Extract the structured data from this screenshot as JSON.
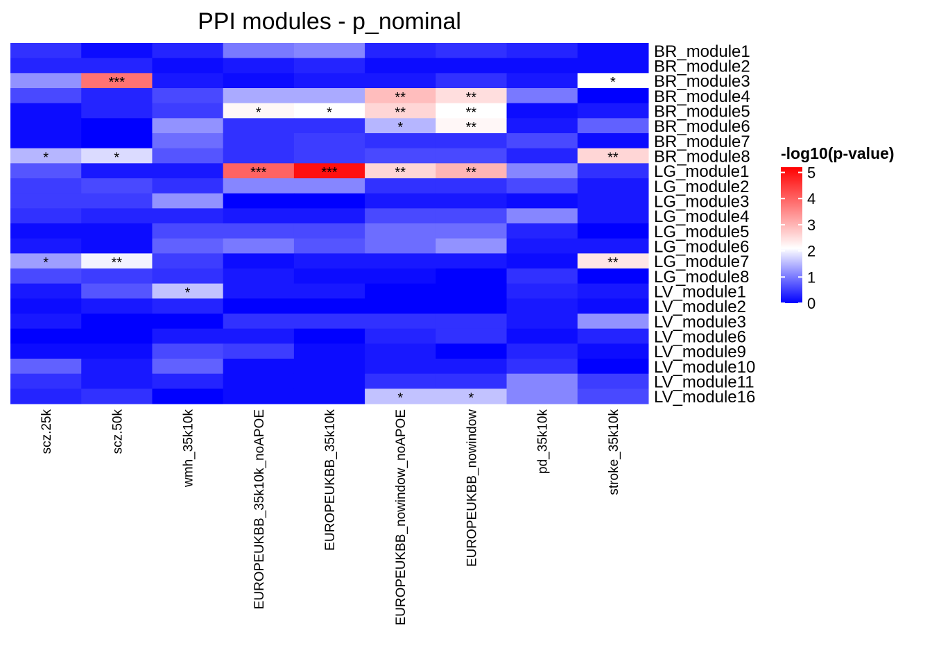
{
  "chart_data": {
    "type": "heatmap",
    "title": "PPI modules - p_nominal",
    "columns": [
      "scz.25k",
      "scz.50k",
      "wmh_35k10k",
      "EUROPEUKBB_35k10k_noAPOE",
      "EUROPEUKBB_35k10k",
      "EUROPEUKBB_nowindow_noAPOE",
      "EUROPEUKBB_nowindow",
      "pd_35k10k",
      "stroke_35k10k"
    ],
    "rows": [
      "BR_module1",
      "BR_module2",
      "BR_module3",
      "BR_module4",
      "BR_module5",
      "BR_module6",
      "BR_module7",
      "BR_module8",
      "LG_module1",
      "LG_module2",
      "LG_module3",
      "LG_module4",
      "LG_module5",
      "LG_module6",
      "LG_module7",
      "LG_module8",
      "LV_module1",
      "LV_module2",
      "LV_module3",
      "LV_module6",
      "LV_module9",
      "LV_module10",
      "LV_module11",
      "LV_module16"
    ],
    "values": [
      [
        0.4,
        0.1,
        0.3,
        1.0,
        1.1,
        0.3,
        0.4,
        0.3,
        0.1
      ],
      [
        0.3,
        0.3,
        0.1,
        0.2,
        0.3,
        0.1,
        0.1,
        0.1,
        0.1
      ],
      [
        1.2,
        3.8,
        0.2,
        0.1,
        0.2,
        0.2,
        0.4,
        0.2,
        2.1
      ],
      [
        0.6,
        0.3,
        0.6,
        1.4,
        1.4,
        2.9,
        2.5,
        1.0,
        0.0
      ],
      [
        0.1,
        0.3,
        0.5,
        2.2,
        2.1,
        2.6,
        2.1,
        0.1,
        0.2
      ],
      [
        0.1,
        0.0,
        1.2,
        0.4,
        0.4,
        1.5,
        2.2,
        0.2,
        0.8
      ],
      [
        0.1,
        0.0,
        0.9,
        0.4,
        0.5,
        0.4,
        0.4,
        0.6,
        0.1
      ],
      [
        1.5,
        1.8,
        0.7,
        0.4,
        0.5,
        0.6,
        0.6,
        0.3,
        2.6
      ],
      [
        0.7,
        0.2,
        0.2,
        4.0,
        5.0,
        2.6,
        3.0,
        1.1,
        0.4
      ],
      [
        0.5,
        0.6,
        0.4,
        1.1,
        1.1,
        0.4,
        0.4,
        0.6,
        0.2
      ],
      [
        0.5,
        0.5,
        1.2,
        0.0,
        0.0,
        0.2,
        0.2,
        0.1,
        0.2
      ],
      [
        0.4,
        0.3,
        0.3,
        0.2,
        0.2,
        0.6,
        0.6,
        1.1,
        0.2
      ],
      [
        0.1,
        0.1,
        0.6,
        0.6,
        0.6,
        0.9,
        0.9,
        0.3,
        0.0
      ],
      [
        0.2,
        0.1,
        0.8,
        1.0,
        0.7,
        0.9,
        1.2,
        0.2,
        0.2
      ],
      [
        1.3,
        2.0,
        0.5,
        0.1,
        0.2,
        0.2,
        0.2,
        0.1,
        2.4
      ],
      [
        0.6,
        0.5,
        0.4,
        0.2,
        0.1,
        0.1,
        0.0,
        0.4,
        0.0
      ],
      [
        0.2,
        0.7,
        1.6,
        0.2,
        0.2,
        0.0,
        0.0,
        0.3,
        0.2
      ],
      [
        0.1,
        0.2,
        0.3,
        0.0,
        0.0,
        0.0,
        0.0,
        0.2,
        0.1
      ],
      [
        0.2,
        0.0,
        0.0,
        0.4,
        0.4,
        0.4,
        0.4,
        0.2,
        1.2
      ],
      [
        0.0,
        0.0,
        0.2,
        0.2,
        0.0,
        0.3,
        0.4,
        0.1,
        0.3
      ],
      [
        0.1,
        0.1,
        0.6,
        0.5,
        0.1,
        0.2,
        0.0,
        0.3,
        0.1
      ],
      [
        0.8,
        0.2,
        0.8,
        0.1,
        0.1,
        0.2,
        0.2,
        0.4,
        0.0
      ],
      [
        0.4,
        0.2,
        0.3,
        0.1,
        0.1,
        0.4,
        0.4,
        1.1,
        0.5
      ],
      [
        0.3,
        0.4,
        0.0,
        0.1,
        0.1,
        1.6,
        1.6,
        1.1,
        0.6
      ]
    ],
    "annotations": [
      [
        "",
        "",
        "",
        "",
        "",
        "",
        "",
        "",
        ""
      ],
      [
        "",
        "",
        "",
        "",
        "",
        "",
        "",
        "",
        ""
      ],
      [
        "",
        "***",
        "",
        "",
        "",
        "",
        "",
        "",
        "*"
      ],
      [
        "",
        "",
        "",
        "",
        "",
        "**",
        "**",
        "",
        ""
      ],
      [
        "",
        "",
        "",
        "*",
        "*",
        "**",
        "**",
        "",
        ""
      ],
      [
        "",
        "",
        "",
        "",
        "",
        "*",
        "**",
        "",
        ""
      ],
      [
        "",
        "",
        "",
        "",
        "",
        "",
        "",
        "",
        ""
      ],
      [
        "*",
        "*",
        "",
        "",
        "",
        "",
        "",
        "",
        "**"
      ],
      [
        "",
        "",
        "",
        "***",
        "***",
        "**",
        "**",
        "",
        ""
      ],
      [
        "",
        "",
        "",
        "",
        "",
        "",
        "",
        "",
        ""
      ],
      [
        "",
        "",
        "",
        "",
        "",
        "",
        "",
        "",
        ""
      ],
      [
        "",
        "",
        "",
        "",
        "",
        "",
        "",
        "",
        ""
      ],
      [
        "",
        "",
        "",
        "",
        "",
        "",
        "",
        "",
        ""
      ],
      [
        "",
        "",
        "",
        "",
        "",
        "",
        "",
        "",
        ""
      ],
      [
        "*",
        "**",
        "",
        "",
        "",
        "",
        "",
        "",
        "**"
      ],
      [
        "",
        "",
        "",
        "",
        "",
        "",
        "",
        "",
        ""
      ],
      [
        "",
        "",
        "*",
        "",
        "",
        "",
        "",
        "",
        ""
      ],
      [
        "",
        "",
        "",
        "",
        "",
        "",
        "",
        "",
        ""
      ],
      [
        "",
        "",
        "",
        "",
        "",
        "",
        "",
        "",
        ""
      ],
      [
        "",
        "",
        "",
        "",
        "",
        "",
        "",
        "",
        ""
      ],
      [
        "",
        "",
        "",
        "",
        "",
        "",
        "",
        "",
        ""
      ],
      [
        "",
        "",
        "",
        "",
        "",
        "",
        "",
        "",
        ""
      ],
      [
        "",
        "",
        "",
        "",
        "",
        "",
        "",
        "",
        ""
      ],
      [
        "",
        "",
        "",
        "",
        "",
        "*",
        "*",
        "",
        ""
      ]
    ],
    "legend": {
      "title": "-log10(p-value)",
      "ticks": [
        0,
        1,
        2,
        3,
        4,
        5
      ],
      "range": [
        0,
        5.2
      ],
      "colors": {
        "low": "#0000ff",
        "mid": "#ffffff",
        "high": "#ff0000"
      },
      "mid_value": 2.1
    }
  }
}
